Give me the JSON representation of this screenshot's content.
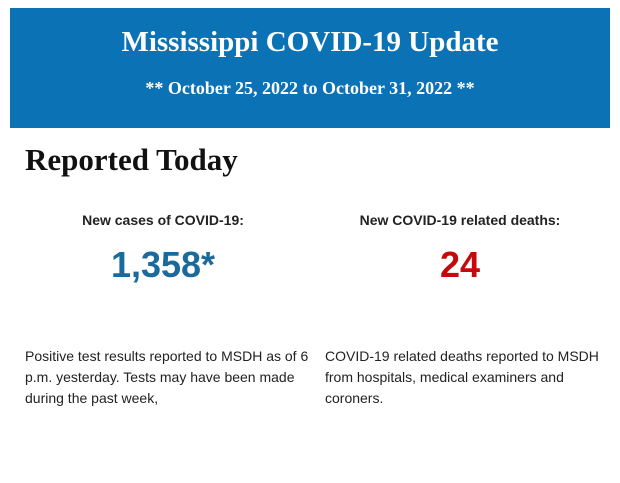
{
  "header": {
    "title": "Mississippi COVID-19 Update",
    "subtitle": "** October 25, 2022 to October 31, 2022 **"
  },
  "section": {
    "heading": "Reported Today",
    "stats": [
      {
        "label": "New cases of COVID-19:",
        "value": "1,358*",
        "description": "Positive test results reported to MSDH as of 6 p.m. yesterday. Tests may have been made during the past week,"
      },
      {
        "label": "New COVID-19 related deaths:",
        "value": "24",
        "description": "COVID-19 related deaths reported to MSDH from hospitals, medical examiners and coroners."
      }
    ]
  }
}
